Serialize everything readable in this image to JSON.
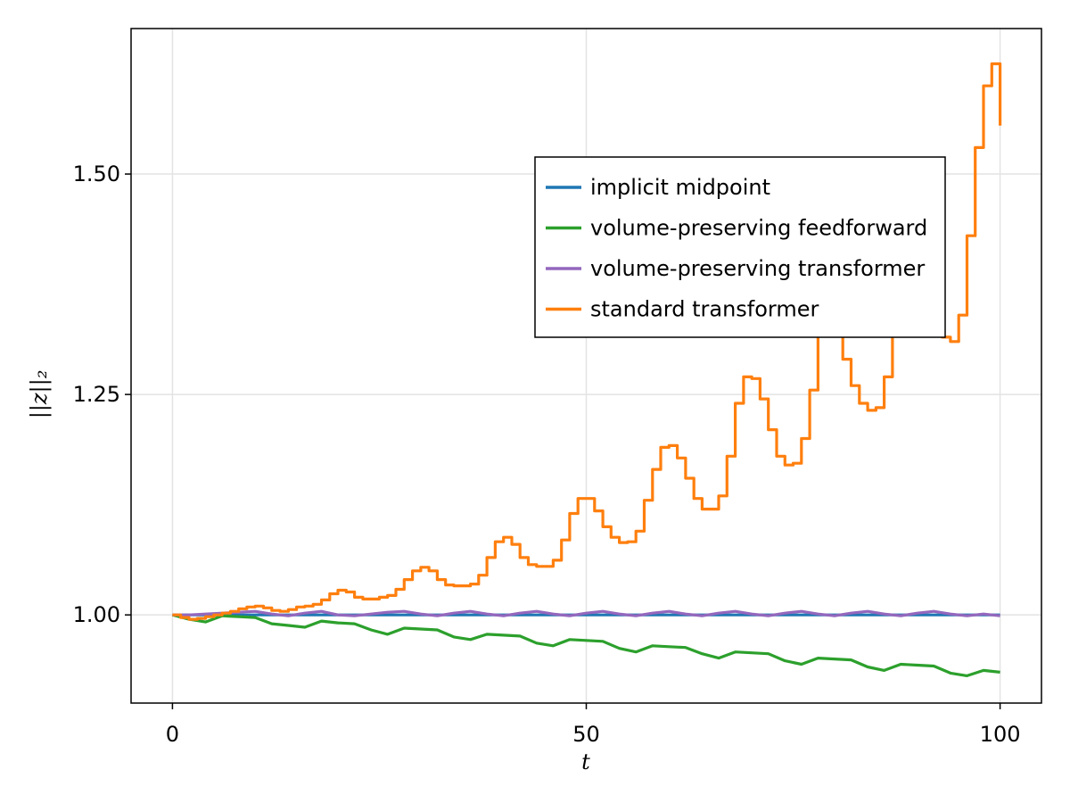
{
  "chart_data": {
    "type": "line",
    "xlabel": "t",
    "ylabel": "||z||₂",
    "xlim": [
      -5,
      105
    ],
    "ylim": [
      0.9,
      1.665
    ],
    "xticks": [
      0,
      50,
      100
    ],
    "xtick_labels": [
      "0",
      "50",
      "100"
    ],
    "yticks": [
      1.0,
      1.25,
      1.5
    ],
    "ytick_labels": [
      "1.00",
      "1.25",
      "1.50"
    ],
    "grid": true,
    "legend_position": "upper-right (inset)",
    "series": [
      {
        "name": "implicit midpoint",
        "color": "#1f77b4",
        "x": [
          0,
          100
        ],
        "y": [
          1.0,
          1.0
        ]
      },
      {
        "name": "volume-preserving feedforward",
        "color": "#2ca02c",
        "x": [
          0,
          2,
          4,
          6,
          8,
          10,
          12,
          14,
          16,
          18,
          20,
          22,
          24,
          26,
          28,
          30,
          32,
          34,
          36,
          38,
          40,
          42,
          44,
          46,
          48,
          50,
          52,
          54,
          56,
          58,
          60,
          62,
          64,
          66,
          68,
          70,
          72,
          74,
          76,
          78,
          80,
          82,
          84,
          86,
          88,
          90,
          92,
          94,
          96,
          98,
          100
        ],
        "y": [
          1.0,
          0.995,
          0.992,
          0.999,
          0.998,
          0.997,
          0.99,
          0.988,
          0.986,
          0.993,
          0.991,
          0.99,
          0.983,
          0.978,
          0.985,
          0.984,
          0.983,
          0.975,
          0.972,
          0.978,
          0.977,
          0.976,
          0.968,
          0.965,
          0.972,
          0.971,
          0.97,
          0.962,
          0.958,
          0.965,
          0.964,
          0.963,
          0.956,
          0.951,
          0.958,
          0.957,
          0.956,
          0.948,
          0.944,
          0.951,
          0.95,
          0.949,
          0.941,
          0.937,
          0.944,
          0.943,
          0.942,
          0.934,
          0.931,
          0.937,
          0.935
        ]
      },
      {
        "name": "volume-preserving transformer",
        "color": "#9467bd",
        "x": [
          0,
          2,
          4,
          6,
          8,
          10,
          12,
          14,
          16,
          18,
          20,
          22,
          24,
          26,
          28,
          30,
          32,
          34,
          36,
          38,
          40,
          42,
          44,
          46,
          48,
          50,
          52,
          54,
          56,
          58,
          60,
          62,
          64,
          66,
          68,
          70,
          72,
          74,
          76,
          78,
          80,
          82,
          84,
          86,
          88,
          90,
          92,
          94,
          96,
          98,
          100
        ],
        "y": [
          1.0,
          1.0,
          1.001,
          1.002,
          1.003,
          1.004,
          1.001,
          0.999,
          1.002,
          1.004,
          1.0,
          0.999,
          1.001,
          1.003,
          1.004,
          1.001,
          0.999,
          1.002,
          1.004,
          1.001,
          0.999,
          1.002,
          1.004,
          1.001,
          0.999,
          1.002,
          1.004,
          1.001,
          0.999,
          1.002,
          1.004,
          1.001,
          0.999,
          1.002,
          1.004,
          1.001,
          0.999,
          1.002,
          1.004,
          1.001,
          0.999,
          1.002,
          1.004,
          1.001,
          0.999,
          1.002,
          1.004,
          1.001,
          0.999,
          1.001,
          0.999
        ]
      },
      {
        "name": "standard transformer",
        "color": "#ff7f0e",
        "x": [
          0,
          1,
          2,
          3,
          4,
          5,
          6,
          7,
          8,
          9,
          10,
          11,
          12,
          13,
          14,
          15,
          16,
          17,
          18,
          19,
          20,
          21,
          22,
          23,
          24,
          25,
          26,
          27,
          28,
          29,
          30,
          31,
          32,
          33,
          34,
          35,
          36,
          37,
          38,
          39,
          40,
          41,
          42,
          43,
          44,
          45,
          46,
          47,
          48,
          49,
          50,
          51,
          52,
          53,
          54,
          55,
          56,
          57,
          58,
          59,
          60,
          61,
          62,
          63,
          64,
          65,
          66,
          67,
          68,
          69,
          70,
          71,
          72,
          73,
          74,
          75,
          76,
          77,
          78,
          79,
          80,
          81,
          82,
          83,
          84,
          85,
          86,
          87,
          88,
          89,
          90,
          91,
          92,
          93,
          94,
          95,
          96,
          97,
          98,
          99,
          100
        ],
        "y": [
          1.0,
          0.997,
          0.995,
          0.996,
          0.998,
          1.0,
          1.002,
          1.004,
          1.007,
          1.009,
          1.01,
          1.008,
          1.005,
          1.004,
          1.006,
          1.009,
          1.01,
          1.012,
          1.017,
          1.024,
          1.028,
          1.026,
          1.02,
          1.018,
          1.018,
          1.02,
          1.022,
          1.029,
          1.04,
          1.05,
          1.054,
          1.05,
          1.04,
          1.034,
          1.033,
          1.033,
          1.035,
          1.045,
          1.065,
          1.083,
          1.088,
          1.08,
          1.065,
          1.057,
          1.055,
          1.055,
          1.062,
          1.085,
          1.115,
          1.132,
          1.132,
          1.118,
          1.1,
          1.088,
          1.082,
          1.083,
          1.095,
          1.13,
          1.165,
          1.19,
          1.192,
          1.178,
          1.155,
          1.132,
          1.12,
          1.12,
          1.135,
          1.18,
          1.24,
          1.27,
          1.268,
          1.245,
          1.21,
          1.18,
          1.17,
          1.172,
          1.2,
          1.255,
          1.325,
          1.37,
          1.34,
          1.29,
          1.26,
          1.24,
          1.232,
          1.235,
          1.27,
          1.34,
          1.4,
          1.395,
          1.36,
          1.34,
          1.32,
          1.315,
          1.31,
          1.34,
          1.43,
          1.53,
          1.6,
          1.625,
          1.555
        ]
      }
    ]
  }
}
